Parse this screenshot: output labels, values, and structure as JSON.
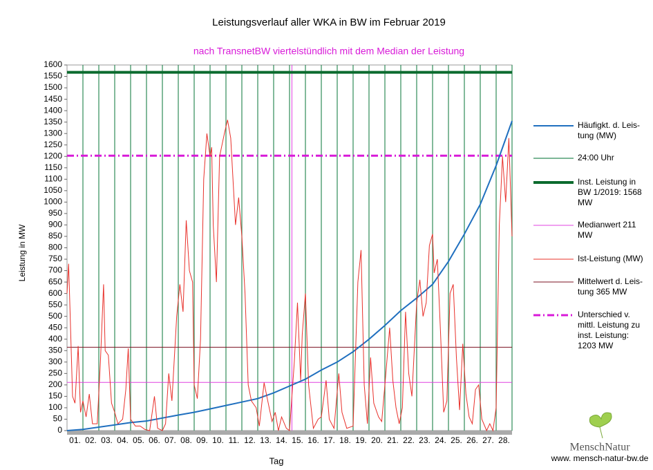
{
  "chart_data": {
    "type": "line",
    "title": "Leistungsverlauf aller WKA in BW im Februar 2019",
    "subtitle": "nach TransnetBW viertelstündlich mit dem Median der Leistung",
    "y_label": "Leistung in MW",
    "x_label": "Tag",
    "categories": [
      "01.",
      "02.",
      "03.",
      "04.",
      "05.",
      "06.",
      "07.",
      "08.",
      "09.",
      "10.",
      "11.",
      "12.",
      "13.",
      "14.",
      "15.",
      "16.",
      "17.",
      "18.",
      "19.",
      "20.",
      "21.",
      "22.",
      "23.",
      "24.",
      "25.",
      "26.",
      "27.",
      "28."
    ],
    "xlim": [
      0,
      28
    ],
    "ylim": [
      0,
      1600
    ],
    "yticks": [
      0,
      50,
      100,
      150,
      200,
      250,
      300,
      350,
      400,
      450,
      500,
      550,
      600,
      650,
      700,
      750,
      800,
      850,
      900,
      950,
      1000,
      1050,
      1100,
      1150,
      1200,
      1250,
      1300,
      1350,
      1400,
      1450,
      1500,
      1550,
      1600
    ],
    "grid": false,
    "series": [
      {
        "name": "Häufigkt. d. Leis-\ntung (MW)",
        "kind": "line",
        "color": "#1f6fbf",
        "width": 2,
        "x": [
          0,
          1,
          2,
          3,
          4,
          5,
          6,
          7,
          8,
          9,
          10,
          11,
          12,
          13,
          14,
          15,
          16,
          17,
          18,
          19,
          20,
          21,
          22,
          23,
          24,
          25,
          26,
          27,
          28
        ],
        "values": [
          0,
          5,
          15,
          25,
          35,
          42,
          55,
          68,
          80,
          95,
          110,
          125,
          140,
          165,
          195,
          225,
          265,
          300,
          345,
          400,
          460,
          525,
          580,
          640,
          740,
          860,
          990,
          1160,
          1355
        ]
      },
      {
        "name": "24:00 Uhr",
        "kind": "vlines",
        "color": "#2e8b57",
        "width": 1.2,
        "x": [
          1,
          2,
          3,
          4,
          5,
          6,
          7,
          8,
          9,
          10,
          11,
          12,
          13,
          14,
          15,
          16,
          17,
          18,
          19,
          20,
          21,
          22,
          23,
          24,
          25,
          26,
          27,
          28
        ]
      },
      {
        "name": "Inst. Leistung in\nBW 1/2019: 1568\nMW",
        "kind": "hline",
        "color": "#0b6b2e",
        "width": 4,
        "value": 1568
      },
      {
        "name": "Medianwert 211\nMW",
        "kind": "median",
        "color": "#e040e0",
        "width": 1,
        "value": 211,
        "x": 14.15
      },
      {
        "name": "Ist-Leistung (MW)",
        "kind": "line",
        "color": "#e8302a",
        "width": 1,
        "x": [
          0,
          0.1,
          0.2,
          0.35,
          0.5,
          0.7,
          0.85,
          1.0,
          1.2,
          1.4,
          1.6,
          1.9,
          2.1,
          2.3,
          2.4,
          2.6,
          2.8,
          3.0,
          3.2,
          3.5,
          3.7,
          3.85,
          4.0,
          4.3,
          4.6,
          4.9,
          5.2,
          5.5,
          5.7,
          6.0,
          6.2,
          6.4,
          6.6,
          6.9,
          7.1,
          7.3,
          7.5,
          7.7,
          7.9,
          8.0,
          8.2,
          8.4,
          8.6,
          8.8,
          9.0,
          9.1,
          9.2,
          9.4,
          9.6,
          9.9,
          10.1,
          10.3,
          10.6,
          10.8,
          11.0,
          11.2,
          11.4,
          11.6,
          11.9,
          12.1,
          12.4,
          12.6,
          12.9,
          13.1,
          13.3,
          13.5,
          13.8,
          14.0,
          14.3,
          14.5,
          14.7,
          14.8,
          15.0,
          15.2,
          15.5,
          15.8,
          16.0,
          16.3,
          16.5,
          16.8,
          17.1,
          17.3,
          17.6,
          18.0,
          18.3,
          18.5,
          18.7,
          18.9,
          19.1,
          19.3,
          19.6,
          19.8,
          20.0,
          20.3,
          20.5,
          20.7,
          20.9,
          21.1,
          21.3,
          21.5,
          21.7,
          22.0,
          22.2,
          22.4,
          22.6,
          22.8,
          23.0,
          23.1,
          23.3,
          23.5,
          23.7,
          23.9,
          24.1,
          24.3,
          24.5,
          24.7,
          24.9,
          25.1,
          25.3,
          25.5,
          25.7,
          25.9,
          26.1,
          26.4,
          26.6,
          26.8,
          27.0,
          27.2,
          27.4,
          27.6,
          27.8,
          28.0
        ],
        "values": [
          600,
          730,
          500,
          150,
          120,
          370,
          80,
          130,
          60,
          160,
          30,
          30,
          300,
          640,
          350,
          330,
          120,
          80,
          30,
          50,
          180,
          360,
          50,
          20,
          20,
          5,
          0,
          150,
          10,
          0,
          30,
          250,
          130,
          500,
          640,
          520,
          920,
          700,
          650,
          200,
          140,
          400,
          1100,
          1300,
          1200,
          1240,
          900,
          650,
          1200,
          1300,
          1360,
          1280,
          900,
          1020,
          850,
          600,
          200,
          130,
          100,
          20,
          210,
          140,
          40,
          80,
          0,
          60,
          10,
          0,
          300,
          560,
          220,
          420,
          600,
          200,
          10,
          50,
          60,
          220,
          50,
          10,
          250,
          80,
          10,
          20,
          650,
          790,
          200,
          30,
          320,
          120,
          60,
          40,
          200,
          450,
          220,
          100,
          30,
          100,
          520,
          250,
          150,
          560,
          660,
          500,
          560,
          810,
          860,
          690,
          750,
          430,
          80,
          130,
          600,
          640,
          320,
          90,
          380,
          160,
          60,
          30,
          180,
          200,
          50,
          0,
          30,
          0,
          100,
          900,
          1200,
          1000,
          1280,
          850
        ]
      },
      {
        "name": "Mittelwert d. Leis-\ntung 365 MW",
        "kind": "hline",
        "color": "#7a1020",
        "width": 1,
        "value": 365
      },
      {
        "name": "Unterschied v.\nmittl. Leistung zu\ninst. Leistung:\n1203 MW",
        "kind": "hline",
        "color": "#d81ad8",
        "width": 3,
        "value": 1203,
        "dash": true
      }
    ]
  },
  "footer": {
    "logo": "MenschNatur",
    "url": "www. mensch-natur-bw.de"
  }
}
